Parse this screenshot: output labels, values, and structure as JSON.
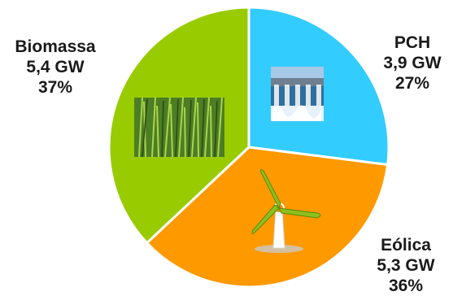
{
  "chart_data": {
    "type": "pie",
    "slices": [
      {
        "label": "PCH",
        "value_text": "3,9 GW",
        "percent_text": "27%",
        "value": 3.9,
        "percent": 27,
        "color": "#33ccff",
        "icon": "hydroelectric-dam-icon"
      },
      {
        "label": "Eólica",
        "value_text": "5,3 GW",
        "percent_text": "36%",
        "value": 5.3,
        "percent": 36,
        "color": "#ff9900",
        "icon": "wind-turbine-icon"
      },
      {
        "label": "Biomassa",
        "value_text": "5,4 GW",
        "percent_text": "37%",
        "value": 5.4,
        "percent": 37,
        "color": "#99cc00",
        "icon": "grass-photo-icon"
      }
    ],
    "start_angle": "12 o'clock",
    "direction": "clockwise",
    "legend": "none",
    "title": ""
  }
}
